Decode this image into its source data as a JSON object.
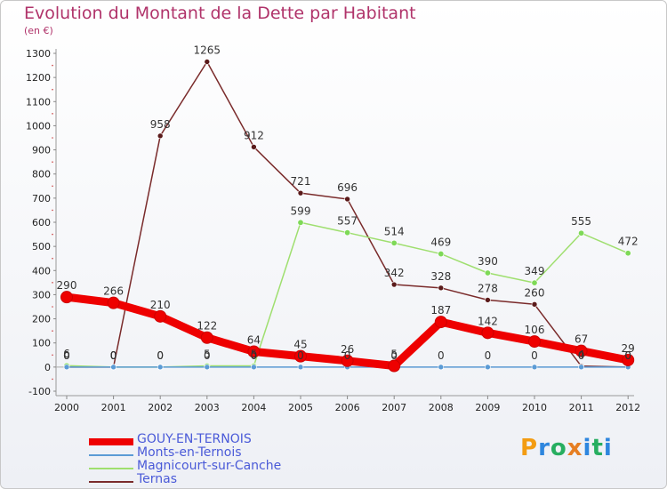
{
  "chart_data": {
    "type": "line",
    "title": "Evolution du Montant de la Dette par Habitant",
    "subtitle": "(en €)",
    "xlabel": "",
    "ylabel": "",
    "x": [
      "2000",
      "2001",
      "2002",
      "2003",
      "2004",
      "2005",
      "2006",
      "2007",
      "2008",
      "2009",
      "2010",
      "2011",
      "2012"
    ],
    "yticks": [
      "1300",
      "1200",
      "1100",
      "1000",
      "900",
      "800",
      "700",
      "600",
      "500",
      "400",
      "300",
      "200",
      "100",
      "0",
      "-100"
    ],
    "ylim": [
      -100,
      1300
    ],
    "grid": false,
    "legend_position": "bottom-left",
    "series": [
      {
        "name": "GOUY-EN-TERNOIS",
        "color": "#ee0000",
        "values": [
          290,
          266,
          210,
          122,
          64,
          45,
          26,
          5,
          187,
          142,
          106,
          67,
          29
        ]
      },
      {
        "name": "Monts-en-Ternois",
        "color": "#5b9bd5",
        "values": [
          0,
          0,
          0,
          0,
          0,
          0,
          0,
          0,
          0,
          0,
          0,
          0,
          0
        ]
      },
      {
        "name": "Magnicourt-sur-Canche",
        "color": "#9fdf6f",
        "values": [
          6,
          0,
          0,
          5,
          5,
          599,
          557,
          514,
          469,
          390,
          349,
          555,
          472
        ]
      },
      {
        "name": "Ternas",
        "color": "#7a2b2b",
        "values": [
          0,
          0,
          958,
          1265,
          912,
          721,
          696,
          342,
          328,
          278,
          260,
          4,
          0
        ]
      }
    ]
  },
  "logo": {
    "text": "Proxiti",
    "letters": [
      {
        "ch": "P",
        "color": "#f39c12"
      },
      {
        "ch": "r",
        "color": "#2e86de"
      },
      {
        "ch": "o",
        "color": "#27ae60"
      },
      {
        "ch": "x",
        "color": "#e67e22"
      },
      {
        "ch": "i",
        "color": "#2e86de"
      },
      {
        "ch": "t",
        "color": "#27ae60"
      },
      {
        "ch": "i",
        "color": "#2e86de"
      }
    ]
  }
}
